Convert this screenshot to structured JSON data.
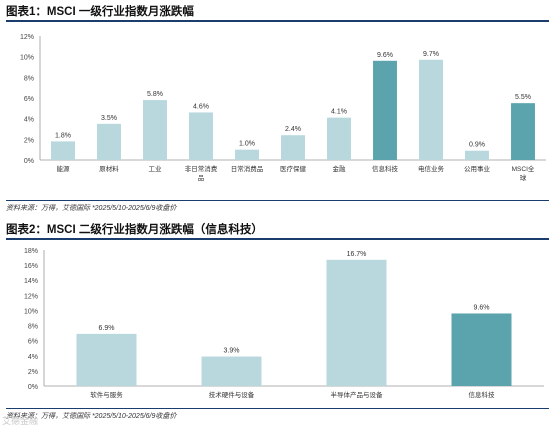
{
  "figure1": {
    "title": "图表1：MSCI 一级行业指数月涨跌幅",
    "source": "资料来源：万得，艾德国际  *2025/5/10-2025/6/9收盘价"
  },
  "figure2": {
    "title": "图表2：MSCI 二级行业指数月涨跌幅（信息科技）",
    "source": "资料来源：万得，艾德国际  *2025/5/10-2025/6/9收盘价"
  },
  "watermark": "艾德金融",
  "colors": {
    "light_bar": "#b8d8de",
    "dark_bar": "#5ba3ad",
    "rule": "#1a3d6d"
  },
  "chart_data": [
    {
      "type": "bar",
      "title": "MSCI 一级行业指数月涨跌幅",
      "categories": [
        "能源",
        "原材料",
        "工业",
        "非日常消费品",
        "日常消费品",
        "医疗保健",
        "金融",
        "信息科技",
        "电信业务",
        "公用事业",
        "MSCI全球"
      ],
      "values": [
        1.8,
        3.5,
        5.8,
        4.6,
        1.0,
        2.4,
        4.1,
        9.6,
        9.7,
        0.9,
        5.5
      ],
      "data_labels": [
        "1.8%",
        "3.5%",
        "5.8%",
        "4.6%",
        "1.0%",
        "2.4%",
        "4.1%",
        "9.6%",
        "9.7%",
        "0.9%",
        "5.5%"
      ],
      "highlight": [
        false,
        false,
        false,
        false,
        false,
        false,
        false,
        true,
        false,
        false,
        true
      ],
      "yticks": [
        "0%",
        "2%",
        "4%",
        "6%",
        "8%",
        "10%",
        "12%"
      ],
      "ylim": [
        0,
        12
      ],
      "grid": false
    },
    {
      "type": "bar",
      "title": "MSCI 二级行业指数月涨跌幅（信息科技）",
      "categories": [
        "软件与服务",
        "技术硬件与设备",
        "半导体产品与设备",
        "信息科技"
      ],
      "values": [
        6.9,
        3.9,
        16.7,
        9.6
      ],
      "data_labels": [
        "6.9%",
        "3.9%",
        "16.7%",
        "9.6%"
      ],
      "highlight": [
        false,
        false,
        false,
        true
      ],
      "yticks": [
        "0%",
        "2%",
        "4%",
        "6%",
        "8%",
        "10%",
        "12%",
        "14%",
        "16%",
        "18%"
      ],
      "ylim": [
        0,
        18
      ],
      "grid": false
    }
  ]
}
